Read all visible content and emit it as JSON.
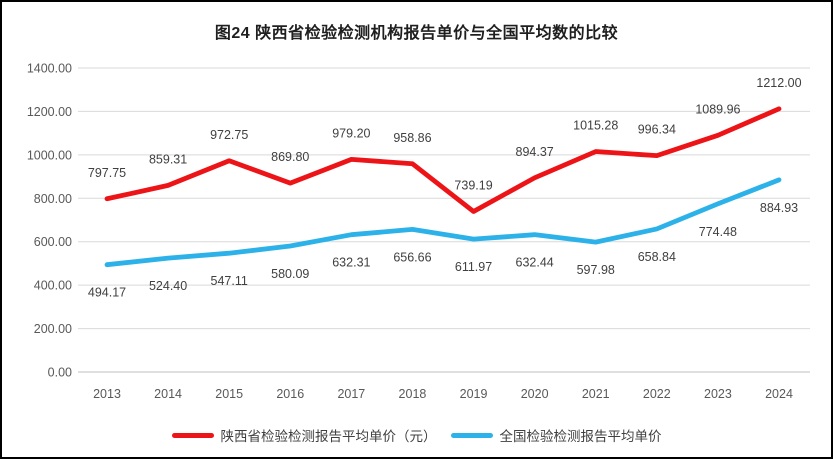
{
  "page": {
    "title": "图24 陕西省检验检测机构报告单价与全国平均数的比较"
  },
  "chart_data": {
    "type": "line",
    "title": "图24 陕西省检验检测机构报告单价与全国平均数的比较",
    "x": [
      "2013",
      "2014",
      "2015",
      "2016",
      "2017",
      "2018",
      "2019",
      "2020",
      "2021",
      "2022",
      "2023",
      "2024"
    ],
    "series": [
      {
        "name": "陕西省检验检测报告平均单价（元）",
        "color": "#ed1418",
        "values": [
          797.75,
          859.31,
          972.75,
          869.8,
          979.2,
          958.86,
          739.19,
          894.37,
          1015.28,
          996.34,
          1089.96,
          1212.0
        ],
        "label_position": "above"
      },
      {
        "name": "全国检验检测报告平均单价",
        "color": "#2cb2e8",
        "values": [
          494.17,
          524.4,
          547.11,
          580.09,
          632.31,
          656.66,
          611.97,
          632.44,
          597.98,
          658.84,
          774.48,
          884.93
        ],
        "label_position": "below"
      }
    ],
    "ylim": [
      0,
      1400
    ],
    "y_tick_step": 200,
    "y_tick_decimals": 2,
    "grid": true,
    "legend_position": "bottom",
    "colors": {
      "gridline": "#d9d9d9",
      "axis_line": "#bfbfbf",
      "tick_text": "#595959",
      "data_label_text": "#404040"
    }
  }
}
